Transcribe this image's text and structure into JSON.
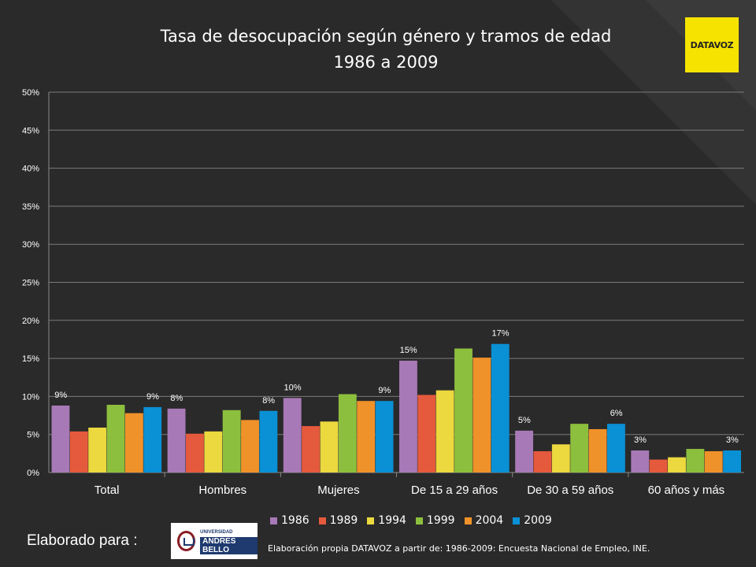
{
  "title_line1": "Tasa de desocupación según género y tramos de edad",
  "title_line2": "1986 a 2009",
  "logo_text": "DATAVOZ",
  "made_for": "Elaborado para :",
  "university": {
    "line1": "UNIVERSIDAD",
    "line2": "ANDRES BELLO"
  },
  "source": "Elaboración propia DATAVOZ a partir de: 1986-2009: Encuesta Nacional de Empleo, INE.",
  "chart_data": {
    "type": "bar",
    "title": "Tasa de desocupación según género y tramos de edad 1986 a 2009",
    "categories": [
      "Total",
      "Hombres",
      "Mujeres",
      "De 15 a 29 años",
      "De 30 a 59 años",
      "60 años y más"
    ],
    "ylim": [
      0,
      50
    ],
    "yticks": [
      "0%",
      "5%",
      "10%",
      "15%",
      "20%",
      "25%",
      "30%",
      "35%",
      "40%",
      "45%",
      "50%"
    ],
    "grid": true,
    "legend_position": "bottom",
    "series": [
      {
        "name": "1986",
        "color": "#a779b6",
        "values": [
          8.8,
          8.4,
          9.8,
          14.7,
          5.5,
          2.9
        ],
        "labels": [
          "9%",
          "8%",
          "10%",
          "15%",
          "5%",
          "3%"
        ]
      },
      {
        "name": "1989",
        "color": "#e55a3c",
        "values": [
          5.4,
          5.1,
          6.1,
          10.2,
          2.8,
          1.7
        ],
        "labels": [
          "",
          "",
          "",
          "",
          "",
          ""
        ]
      },
      {
        "name": "1994",
        "color": "#ecd83f",
        "values": [
          5.9,
          5.4,
          6.7,
          10.8,
          3.7,
          2.0
        ],
        "labels": [
          "",
          "",
          "",
          "",
          "",
          ""
        ]
      },
      {
        "name": "1999",
        "color": "#8dbf3e",
        "values": [
          8.9,
          8.2,
          10.3,
          16.3,
          6.4,
          3.1
        ],
        "labels": [
          "",
          "",
          "",
          "",
          "",
          ""
        ]
      },
      {
        "name": "2004",
        "color": "#f0922a",
        "values": [
          7.8,
          6.9,
          9.4,
          15.1,
          5.7,
          2.8
        ],
        "labels": [
          "",
          "",
          "",
          "",
          "",
          ""
        ]
      },
      {
        "name": "2009",
        "color": "#0a90d4",
        "values": [
          8.6,
          8.1,
          9.4,
          16.9,
          6.4,
          2.9
        ],
        "labels": [
          "9%",
          "8%",
          "9%",
          "17%",
          "6%",
          "3%"
        ]
      }
    ]
  }
}
